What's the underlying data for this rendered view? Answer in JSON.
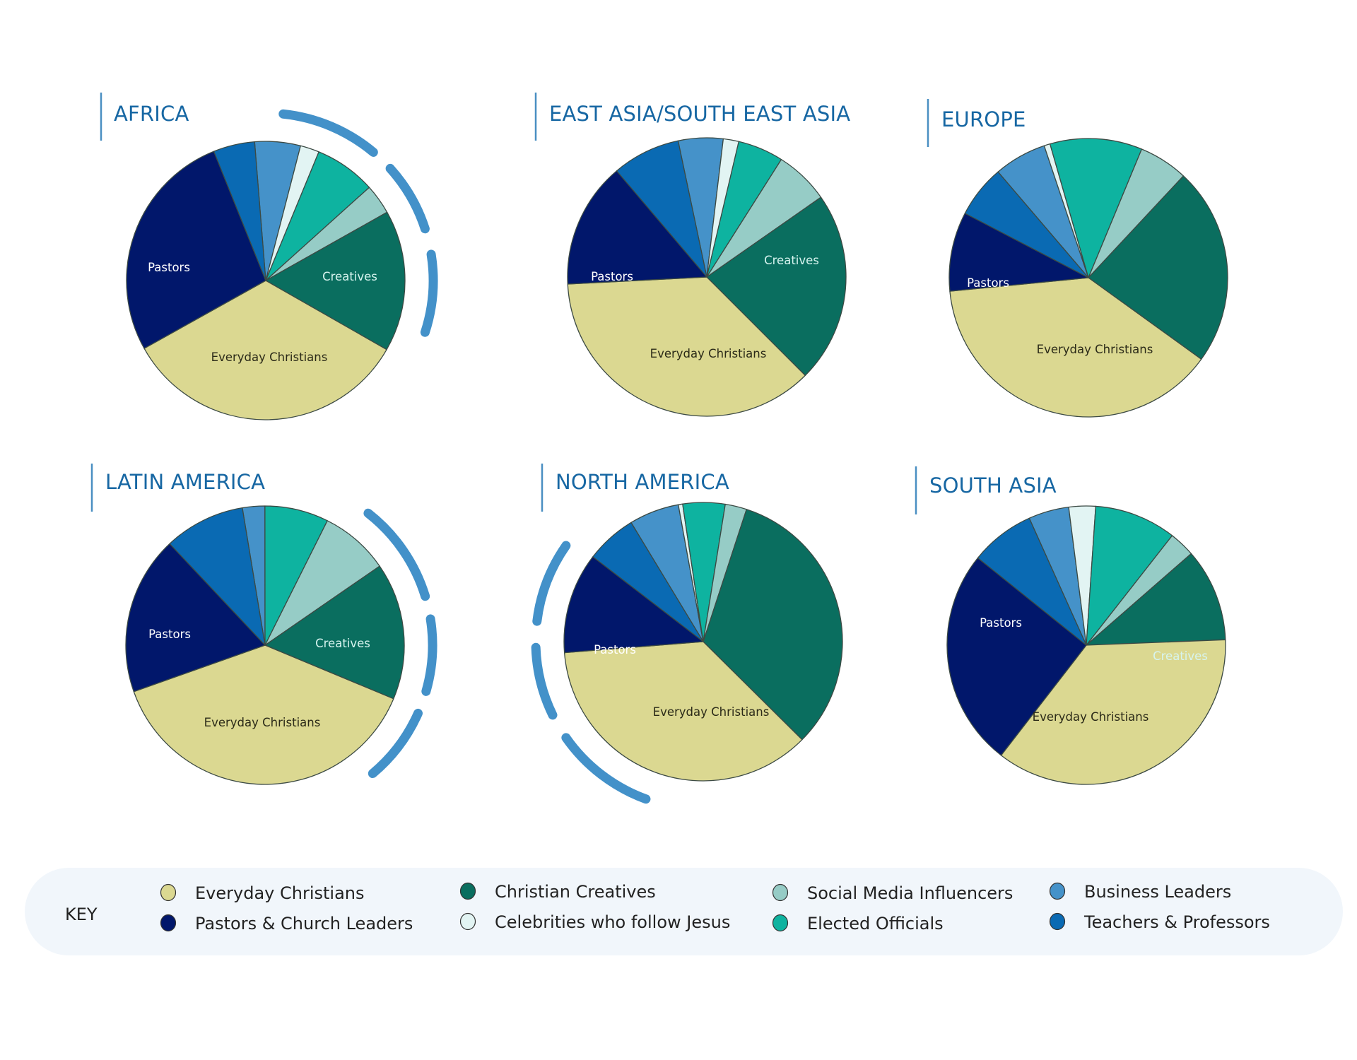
{
  "chart_data": {
    "type": "pie",
    "title": "",
    "categories": [
      {
        "key": "everyday",
        "name": "Everyday Christians",
        "color": "#dbd891"
      },
      {
        "key": "creatives",
        "name": "Christian Creatives",
        "color": "#0a6e5f"
      },
      {
        "key": "social",
        "name": "Social Media Influencers",
        "color": "#96ccc6"
      },
      {
        "key": "business",
        "name": "Business Leaders",
        "color": "#4592c9"
      },
      {
        "key": "pastors",
        "name": "Pastors & Church Leaders",
        "color": "#01176b"
      },
      {
        "key": "celebrities",
        "name": "Celebrities who follow Jesus",
        "color": "#e2f4f3"
      },
      {
        "key": "elected",
        "name": "Elected Officials",
        "color": "#0eb3a0"
      },
      {
        "key": "teachers",
        "name": "Teachers & Professors",
        "color": "#0a6ab3"
      }
    ],
    "slice_order_clockwise": [
      "business",
      "celebrities",
      "elected",
      "social",
      "creatives",
      "everyday",
      "pastors",
      "teachers"
    ],
    "charts": [
      {
        "region": "AFRICA",
        "values_percent": {
          "business": 5.3,
          "celebrities": 2.2,
          "elected": 7.1,
          "social": 3.5,
          "creatives": 16.4,
          "everyday": 33.6,
          "pastors": 27.0,
          "teachers": 4.8
        },
        "labels": {
          "pastors": "Pastors",
          "creatives": "Creatives",
          "everyday": "Everyday Christians"
        },
        "highlighted": true
      },
      {
        "region": "EAST ASIA/SOUTH EAST ASIA",
        "values_percent": {
          "business": 5.2,
          "celebrities": 1.8,
          "elected": 5.3,
          "social": 6.3,
          "creatives": 22.2,
          "everyday": 36.7,
          "pastors": 14.6,
          "teachers": 7.9
        },
        "labels": {
          "pastors": "Pastors",
          "creatives": "Creatives",
          "everyday": "Everyday Christians"
        },
        "highlighted": false
      },
      {
        "region": "EUROPE",
        "values_percent": {
          "business": 6.1,
          "celebrities": 0.7,
          "elected": 10.7,
          "social": 5.7,
          "creatives": 23.0,
          "everyday": 38.5,
          "pastors": 9.2,
          "teachers": 6.1
        },
        "labels": {
          "pastors": "Pastors",
          "everyday": "Everyday Christians"
        },
        "highlighted": false
      },
      {
        "region": "LATIN AMERICA",
        "values_percent": {
          "business": 2.6,
          "celebrities": 0,
          "elected": 7.4,
          "social": 8.0,
          "creatives": 15.9,
          "everyday": 38.3,
          "pastors": 18.4,
          "teachers": 9.4
        },
        "labels": {
          "pastors": "Pastors",
          "creatives": "Creatives",
          "everyday": "Everyday Christians"
        },
        "highlighted": true
      },
      {
        "region": "NORTH AMERICA",
        "values_percent": {
          "business": 5.8,
          "celebrities": 0.5,
          "elected": 4.9,
          "social": 2.5,
          "creatives": 32.4,
          "everyday": 36.3,
          "pastors": 11.7,
          "teachers": 5.9
        },
        "labels": {
          "pastors": "Pastors",
          "everyday": "Everyday Christians"
        },
        "highlighted": true
      },
      {
        "region": "SOUTH ASIA",
        "values_percent": {
          "business": 4.7,
          "celebrities": 3.1,
          "elected": 9.5,
          "social": 3.0,
          "creatives": 10.8,
          "everyday": 36.1,
          "pastors": 25.3,
          "teachers": 7.5
        },
        "labels": {
          "pastors": "Pastors",
          "creatives": "Creatives",
          "everyday": "Everyday Christians"
        },
        "highlighted": false
      }
    ],
    "legend": {
      "title": "KEY",
      "placement": "bottom",
      "items": [
        {
          "key": "everyday",
          "label": "Everyday Christians"
        },
        {
          "key": "pastors",
          "label": "Pastors & Church Leaders"
        },
        {
          "key": "creatives",
          "label": "Christian Creatives"
        },
        {
          "key": "celebrities",
          "label": "Celebrities who follow Jesus"
        },
        {
          "key": "social",
          "label": "Social Media Influencers"
        },
        {
          "key": "elected",
          "label": "Elected Officials"
        },
        {
          "key": "business",
          "label": "Business Leaders"
        },
        {
          "key": "teachers",
          "label": "Teachers & Professors"
        }
      ]
    }
  },
  "colors": {
    "title": "#1767a3",
    "accent_arc": "#4391c9",
    "key_background": "#f1f6fb",
    "label_light": "#ffffff",
    "label_creatives": "#d7f4ef",
    "label_dark": "#2b2a18"
  }
}
